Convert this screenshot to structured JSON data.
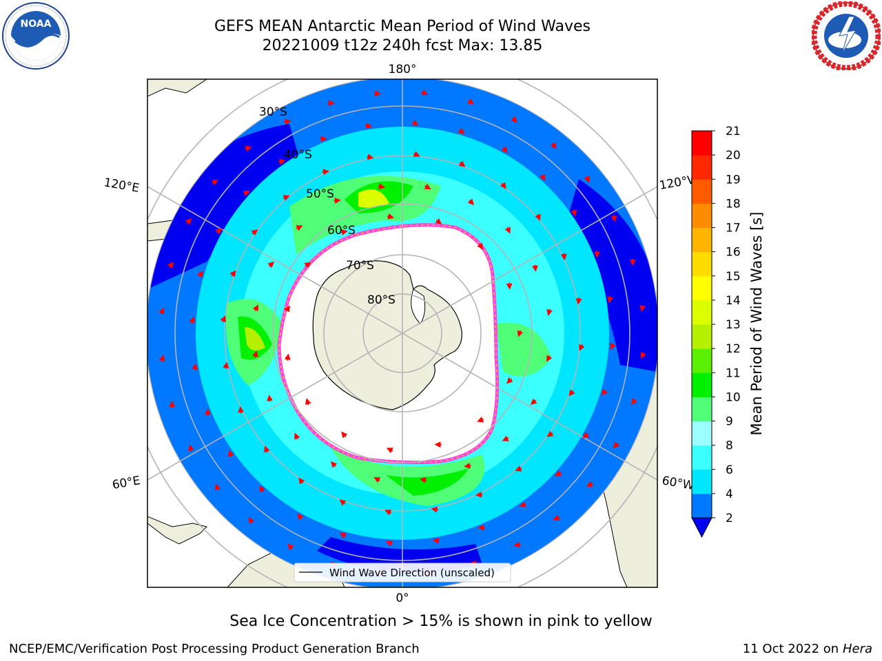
{
  "header": {
    "title_line1": "GEFS MEAN Antarctic Mean Period of Wind Waves",
    "title_line2": "20221009 t12z 240h fcst   Max: 13.85"
  },
  "logos": {
    "left": {
      "name": "noara-logo",
      "text": "NOAA",
      "ring_text": "NATIONAL OCEANIC AND ATMOSPHERIC ADMINISTRATION · U.S. DEPARTMENT OF COMMERCE"
    },
    "right": {
      "name": "nws-logo",
      "ring_text": "NATIONAL WEATHER SERVICE"
    }
  },
  "map": {
    "longitude_labels": [
      {
        "id": "lon-180",
        "text": "180°"
      },
      {
        "id": "lon-0",
        "text": "0°"
      },
      {
        "id": "lon-120e",
        "text": "120°E"
      },
      {
        "id": "lon-60e",
        "text": "60°E"
      },
      {
        "id": "lon-120w",
        "text": "120°W"
      },
      {
        "id": "lon-60w",
        "text": "60°W"
      }
    ],
    "latitude_labels": [
      {
        "id": "lat-30s",
        "text": "30°S"
      },
      {
        "id": "lat-40s",
        "text": "40°S"
      },
      {
        "id": "lat-50s",
        "text": "50°S"
      },
      {
        "id": "lat-60s",
        "text": "60°S"
      },
      {
        "id": "lat-70s",
        "text": "70°S"
      },
      {
        "id": "lat-80s",
        "text": "80°S"
      }
    ],
    "legend_label": "Wind Wave Direction (unscaled)",
    "colors": {
      "land": "#eeeedd",
      "ice": "#ffffff",
      "grid": "#b4b4b4",
      "arrow": "#ff0000"
    }
  },
  "colorbar": {
    "label": "Mean Period of Wind Waves [s]",
    "ticks": [
      "2",
      "4",
      "6",
      "8",
      "9",
      "10",
      "11",
      "12",
      "13",
      "14",
      "15",
      "16",
      "17",
      "18",
      "19",
      "20",
      "21"
    ],
    "colors": [
      "#0000f0",
      "#0078ff",
      "#00e6ff",
      "#3cffff",
      "#9bffff",
      "#50ff78",
      "#00f000",
      "#5af000",
      "#b4f000",
      "#dcff00",
      "#ffff00",
      "#ffdc00",
      "#ffb400",
      "#ff8c00",
      "#ff5a00",
      "#ff2800",
      "#ff0000"
    ]
  },
  "footer": {
    "sea_ice_note": "Sea Ice Concentration > 15% is shown in pink to yellow",
    "credit": "NCEP/EMC/Verification Post Processing Product Generation Branch",
    "date": "11 Oct 2022 on",
    "machine": "Hera"
  }
}
